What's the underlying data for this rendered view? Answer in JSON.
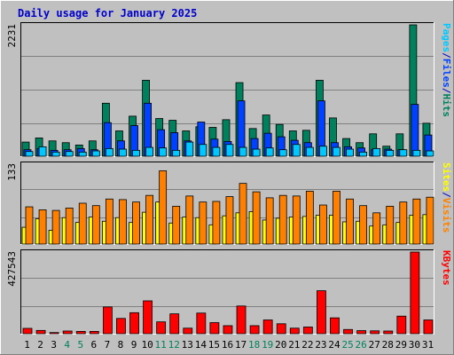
{
  "title": "Daily usage for January 2025",
  "colors": {
    "background": "#C0C0C0",
    "title": "#0000CC",
    "hits": "#00805C",
    "files": "#0040FF",
    "pages": "#00C8FF",
    "visits": "#FF8000",
    "sites": "#FFFF00",
    "kbytes": "#FF0000",
    "weekend_label": "#00805C",
    "weekday_label": "#000000"
  },
  "chart_data": [
    {
      "type": "bar",
      "name": "hits-files-pages",
      "y_max_label": "2231",
      "ylim": [
        0,
        2231
      ],
      "legend": [
        "Pages",
        "/",
        "Files",
        "/",
        "Hits"
      ],
      "categories": [
        "1",
        "2",
        "3",
        "4",
        "5",
        "6",
        "7",
        "8",
        "9",
        "10",
        "11",
        "12",
        "13",
        "14",
        "15",
        "16",
        "17",
        "18",
        "19",
        "20",
        "21",
        "22",
        "23",
        "24",
        "25",
        "26",
        "27",
        "28",
        "29",
        "30",
        "31"
      ],
      "weekend_days": [
        "4",
        "5",
        "11",
        "12",
        "18",
        "19",
        "25",
        "26"
      ],
      "series": [
        {
          "name": "Hits",
          "values": [
            240,
            310,
            260,
            230,
            190,
            260,
            900,
            430,
            680,
            1290,
            640,
            610,
            430,
            500,
            490,
            620,
            1250,
            470,
            700,
            540,
            430,
            440,
            1290,
            650,
            300,
            230,
            380,
            170,
            380,
            2231,
            560
          ]
        },
        {
          "name": "Files",
          "values": [
            110,
            130,
            100,
            110,
            130,
            110,
            570,
            260,
            520,
            900,
            450,
            400,
            260,
            580,
            290,
            250,
            940,
            300,
            390,
            330,
            270,
            230,
            940,
            230,
            160,
            140,
            110,
            120,
            110,
            880,
            360
          ]
        },
        {
          "name": "Pages",
          "values": [
            80,
            160,
            70,
            80,
            70,
            90,
            130,
            120,
            100,
            150,
            140,
            100,
            240,
            200,
            150,
            200,
            150,
            120,
            140,
            110,
            200,
            150,
            170,
            150,
            120,
            70,
            130,
            100,
            110,
            100,
            90
          ]
        }
      ]
    },
    {
      "type": "bar",
      "name": "visits-sites",
      "y_max_label": "133",
      "ylim": [
        0,
        133
      ],
      "legend": [
        "Sites",
        "/",
        "Visits"
      ],
      "categories": [
        "1",
        "2",
        "3",
        "4",
        "5",
        "6",
        "7",
        "8",
        "9",
        "10",
        "11",
        "12",
        "13",
        "14",
        "15",
        "16",
        "17",
        "18",
        "19",
        "20",
        "21",
        "22",
        "23",
        "24",
        "25",
        "26",
        "27",
        "28",
        "29",
        "30",
        "31"
      ],
      "series": [
        {
          "name": "Visits",
          "values": [
            62,
            57,
            56,
            60,
            68,
            64,
            75,
            74,
            70,
            81,
            122,
            63,
            80,
            70,
            71,
            79,
            101,
            87,
            77,
            81,
            80,
            88,
            65,
            88,
            75,
            64,
            52,
            63,
            70,
            75,
            78
          ]
        },
        {
          "name": "Sites",
          "values": [
            28,
            42,
            23,
            44,
            36,
            45,
            38,
            44,
            36,
            53,
            70,
            35,
            45,
            44,
            32,
            47,
            52,
            54,
            40,
            43,
            45,
            46,
            48,
            48,
            37,
            38,
            30,
            32,
            36,
            48,
            49
          ]
        }
      ]
    },
    {
      "type": "bar",
      "name": "kbytes",
      "y_max_label": "427543",
      "ylim": [
        0,
        427543
      ],
      "legend": [
        "KBytes"
      ],
      "categories": [
        "1",
        "2",
        "3",
        "4",
        "5",
        "6",
        "7",
        "8",
        "9",
        "10",
        "11",
        "12",
        "13",
        "14",
        "15",
        "16",
        "17",
        "18",
        "19",
        "20",
        "21",
        "22",
        "23",
        "24",
        "25",
        "26",
        "27",
        "28",
        "29",
        "30",
        "31"
      ],
      "series": [
        {
          "name": "KBytes",
          "values": [
            28000,
            17000,
            6000,
            14000,
            12000,
            12000,
            140000,
            80000,
            110000,
            172000,
            62000,
            104000,
            29000,
            108000,
            58000,
            42000,
            145000,
            42000,
            72000,
            52000,
            29000,
            35000,
            225000,
            83000,
            22000,
            16000,
            15000,
            14000,
            92000,
            427543,
            72000
          ]
        }
      ]
    }
  ]
}
